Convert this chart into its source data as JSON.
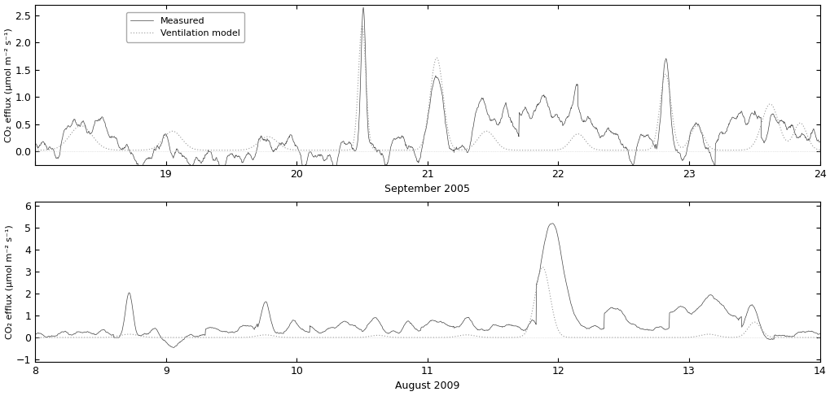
{
  "panel1": {
    "xlabel": "September 2005",
    "ylabel": "CO₂ efflux (μmol m⁻² s⁻¹)",
    "xlim": [
      18.0,
      24.0
    ],
    "ylim": [
      -0.25,
      2.7
    ],
    "yticks": [
      0.0,
      0.5,
      1.0,
      1.5,
      2.0,
      2.5
    ],
    "xticks": [
      18,
      19,
      20,
      21,
      22,
      23,
      24
    ],
    "xticklabels": [
      "",
      "19",
      "20",
      "21",
      "22",
      "23",
      "24"
    ]
  },
  "panel2": {
    "xlabel": "August 2009",
    "ylabel": "CO₂ efflux (μmol m⁻² s⁻¹)",
    "xlim": [
      8.0,
      14.0
    ],
    "ylim": [
      -1.1,
      6.2
    ],
    "yticks": [
      -1,
      0,
      1,
      2,
      3,
      4,
      5,
      6
    ],
    "xticks": [
      8,
      9,
      10,
      11,
      12,
      13,
      14
    ],
    "xticklabels": [
      "8",
      "9",
      "10",
      "11",
      "12",
      "13",
      "14"
    ]
  },
  "measured_color": "#444444",
  "model_color": "#999999",
  "background_color": "#ffffff",
  "legend_measured": "Measured",
  "legend_model": "Ventilation model",
  "fontsize": 9
}
